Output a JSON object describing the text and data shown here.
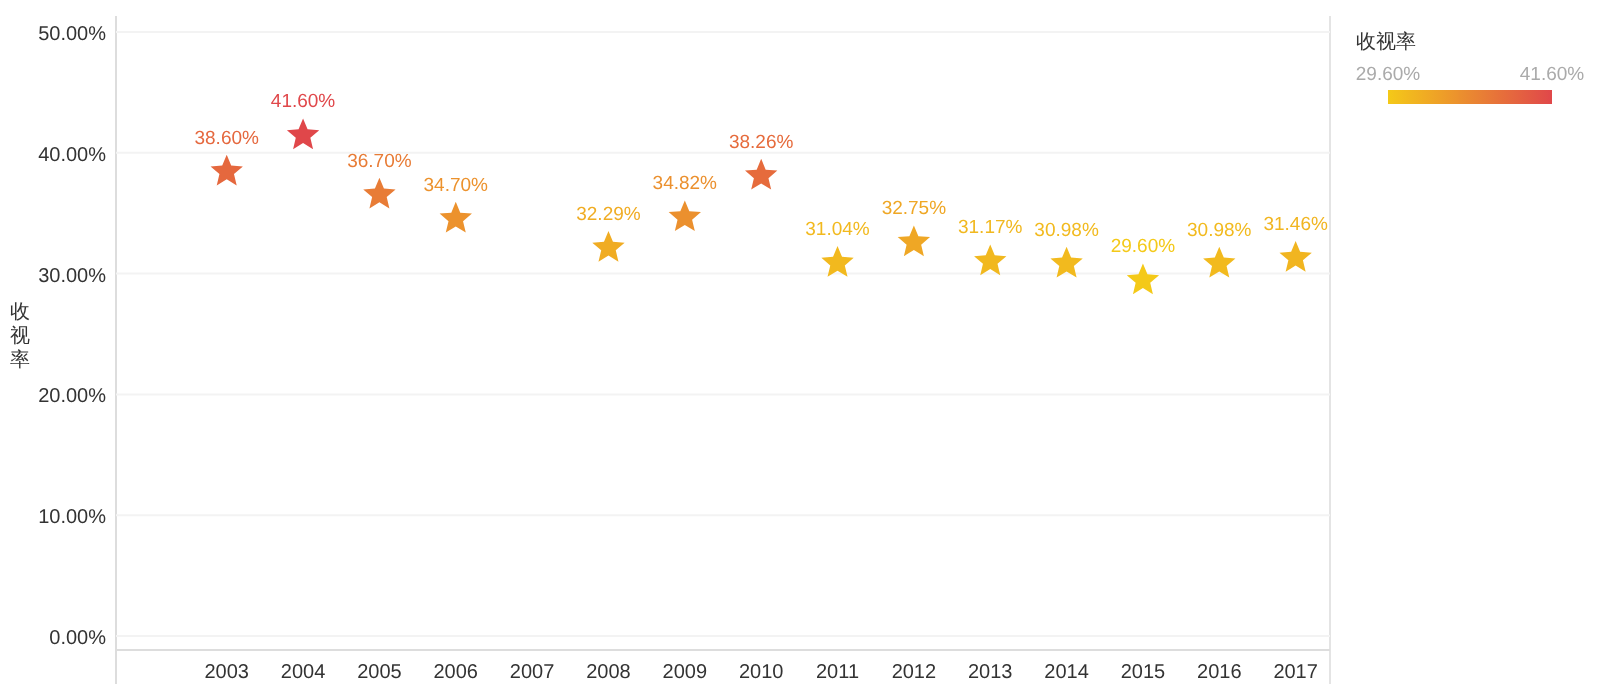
{
  "chart_data": {
    "type": "scatter",
    "marker": "star",
    "grid": "y",
    "ylabel": "收视率",
    "clabel": "收视率",
    "categories": [
      "2003",
      "2004",
      "2005",
      "2006",
      "2007",
      "2008",
      "2009",
      "2010",
      "2011",
      "2012",
      "2013",
      "2014",
      "2015",
      "2016",
      "2017"
    ],
    "values": [
      38.6,
      41.6,
      36.7,
      34.7,
      null,
      32.29,
      34.82,
      38.26,
      31.04,
      32.75,
      31.17,
      30.98,
      29.6,
      30.98,
      31.46
    ],
    "cvalues": [
      38.6,
      41.6,
      36.7,
      34.7,
      null,
      32.29,
      34.82,
      38.26,
      31.04,
      32.75,
      31.17,
      30.98,
      29.6,
      30.98,
      31.46
    ],
    "colors": [
      "#e5683e",
      "#e0474a",
      "#e87c36",
      "#ec922d",
      null,
      "#f0ac23",
      "#eb902e",
      "#e66b3c",
      "#f2b91e",
      "#efa725",
      "#f1b81f",
      "#f2ba1e",
      "#f4c918",
      "#f2ba1e",
      "#f1b520"
    ],
    "value_labels": [
      "38.60%",
      "41.60%",
      "36.70%",
      "34.70%",
      null,
      "32.29%",
      "34.82%",
      "38.26%",
      "31.04%",
      "32.75%",
      "31.17%",
      "30.98%",
      "29.60%",
      "30.98%",
      "31.46%"
    ],
    "clim": [
      29.6,
      41.6
    ],
    "cticks": [
      {
        "value": 29.6,
        "label": "29.60%"
      },
      {
        "value": 41.6,
        "label": "41.60%"
      }
    ],
    "ylim": [
      0,
      50
    ],
    "yticks": [
      {
        "value": 0,
        "label": "0.00%"
      },
      {
        "value": 10,
        "label": "10.00%"
      },
      {
        "value": 20,
        "label": "20.00%"
      },
      {
        "value": 30,
        "label": "30.00%"
      },
      {
        "value": 40,
        "label": "40.00%"
      },
      {
        "value": 50,
        "label": "50.00%"
      }
    ]
  }
}
